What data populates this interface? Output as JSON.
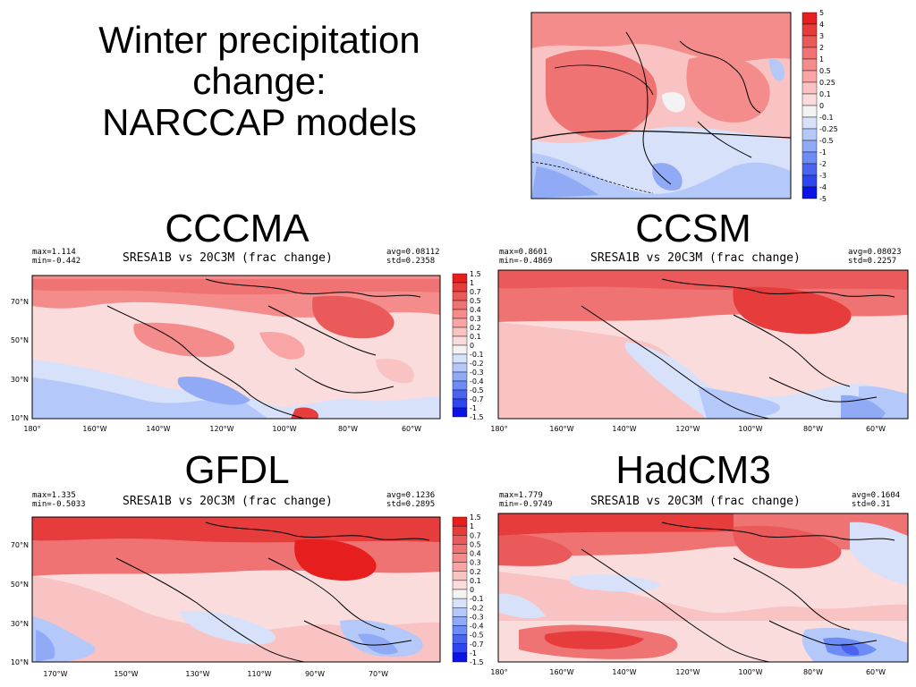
{
  "slide": {
    "title_lines": [
      "Winter precipitation",
      "change:",
      "NARCCAP models"
    ]
  },
  "colors": {
    "scale": [
      "#0a14e6",
      "#2d46f0",
      "#4b64f0",
      "#6e8cf5",
      "#91aaf5",
      "#b4c8fa",
      "#d7e1fa",
      "#f3f3f3",
      "#fadcdc",
      "#fac3c3",
      "#faa5a5",
      "#f58c8c",
      "#f07373",
      "#eb5a5a",
      "#e63c3c",
      "#e61e1e"
    ]
  },
  "chart_data": [
    {
      "type": "heatmap",
      "id": "top",
      "title": "",
      "colorbar": {
        "labels": [
          "5",
          "4",
          "3",
          "2",
          "1",
          "0.5",
          "0.25",
          "0.1",
          "0",
          "-0.1",
          "-0.25",
          "-0.5",
          "-1",
          "-2",
          "-3",
          "-4",
          "-5"
        ]
      }
    },
    {
      "type": "heatmap",
      "id": "cccma",
      "model": "CCCMA",
      "title": "SRESA1B vs 20C3M (frac change)",
      "max_label": "max=1.114",
      "min_label": "min=-0.442",
      "avg_label": "avg=0.08112",
      "std_label": "std=0.2358",
      "y_ticks": [
        "70°N",
        "50°N",
        "30°N",
        "10°N"
      ],
      "x_ticks": [
        "180°",
        "160°W",
        "140°W",
        "120°W",
        "100°W",
        "80°W",
        "60°W"
      ],
      "colorbar": {
        "labels": [
          "1.5",
          "1",
          "0.7",
          "0.5",
          "0.4",
          "0.3",
          "0.2",
          "0.1",
          "0",
          "-0.1",
          "-0.2",
          "-0.3",
          "-0.4",
          "-0.5",
          "-0.7",
          "-1",
          "-1.5"
        ]
      }
    },
    {
      "type": "heatmap",
      "id": "ccsm",
      "model": "CCSM",
      "title": "SRESA1B vs 20C3M (frac change)",
      "max_label": "max=0.8601",
      "min_label": "min=-0.4869",
      "avg_label": "avg=0.08023",
      "std_label": "std=0.2257",
      "x_ticks": [
        "180°",
        "160°W",
        "140°W",
        "120°W",
        "100°W",
        "80°W",
        "60°W"
      ]
    },
    {
      "type": "heatmap",
      "id": "gfdl",
      "model": "GFDL",
      "title": "SRESA1B vs 20C3M (frac change)",
      "max_label": "max=1.335",
      "min_label": "min=-0.5033",
      "avg_label": "avg=0.1236",
      "std_label": "std=0.2895",
      "y_ticks": [
        "70°N",
        "50°N",
        "30°N",
        "10°N"
      ],
      "x_ticks": [
        "170°W",
        "150°W",
        "130°W",
        "110°W",
        "90°W",
        "70°W"
      ],
      "colorbar": {
        "labels": [
          "1.5",
          "1",
          "0.7",
          "0.5",
          "0.4",
          "0.3",
          "0.2",
          "0.1",
          "0",
          "-0.1",
          "-0.2",
          "-0.3",
          "-0.4",
          "-0.5",
          "-0.7",
          "-1",
          "-1.5"
        ]
      }
    },
    {
      "type": "heatmap",
      "id": "hadcm3",
      "model": "HadCM3",
      "title": "SRESA1B vs 20C3M (frac change)",
      "max_label": "max=1.779",
      "min_label": "min=-0.9749",
      "avg_label": "avg=0.1604",
      "std_label": "std=0.31",
      "x_ticks": [
        "180°",
        "160°W",
        "140°W",
        "120°W",
        "100°W",
        "80°W",
        "60°W"
      ]
    }
  ]
}
